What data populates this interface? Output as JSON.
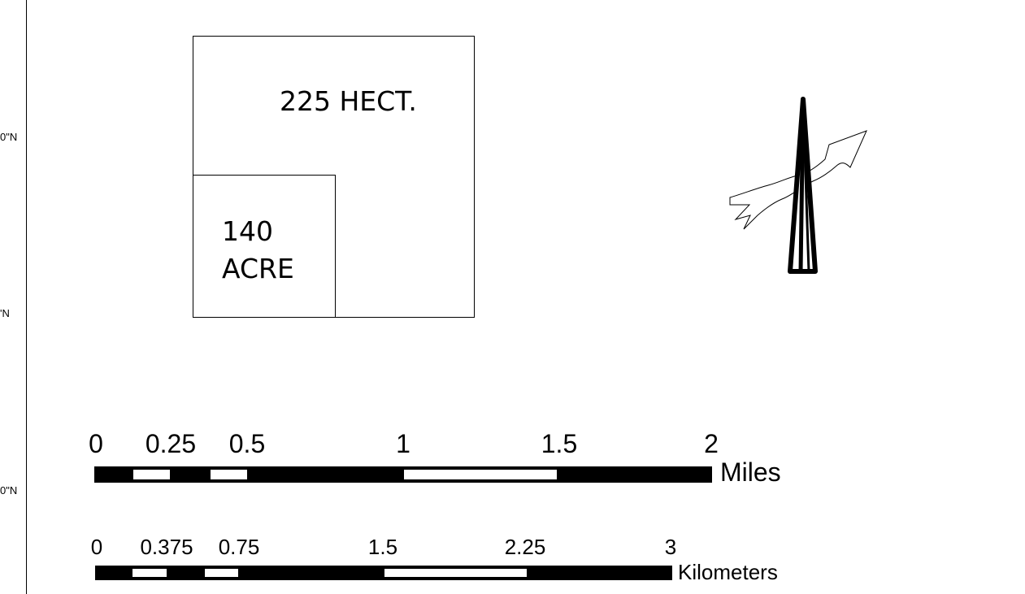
{
  "map_frame": {
    "latitude_labels": [
      "0\"N",
      "'N",
      "0\"N"
    ]
  },
  "area_comparison": {
    "large_area_label": "225 HECT.",
    "small_area_label_line1": "140",
    "small_area_label_line2": "ACRE"
  },
  "north_arrow": {
    "icon": "north-arrow-with-river-icon"
  },
  "scale_bars": {
    "miles": {
      "unit_label": "Miles",
      "ticks": [
        "0",
        "0.25",
        "0.5",
        "1",
        "1.5",
        "2"
      ],
      "tick_values": [
        0,
        0.25,
        0.5,
        1,
        1.5,
        2
      ],
      "alternating_segments_fill": [
        "black",
        "white",
        "black",
        "white",
        "black",
        "white",
        "black"
      ]
    },
    "kilometers": {
      "unit_label": "Kilometers",
      "ticks": [
        "0",
        "0.375",
        "0.75",
        "1.5",
        "2.25",
        "3"
      ],
      "tick_values": [
        0,
        0.375,
        0.75,
        1.5,
        2.25,
        3
      ],
      "alternating_segments_fill": [
        "black",
        "white",
        "black",
        "white",
        "black",
        "white",
        "black"
      ]
    }
  }
}
